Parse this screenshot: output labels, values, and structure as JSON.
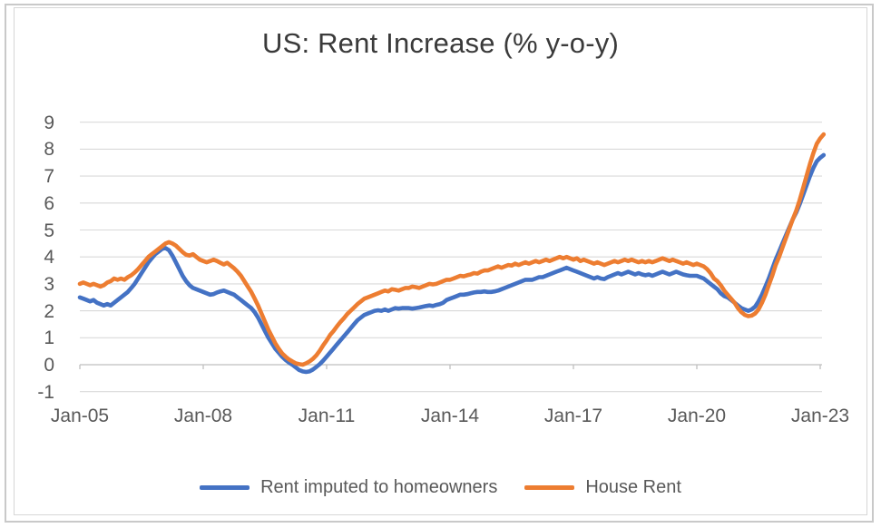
{
  "title": "US: Rent Increase (% y-o-y)",
  "colors": {
    "series_blue": "#4472C4",
    "series_orange": "#ED7D31",
    "gridline": "#d9d9d9",
    "axis_line": "#bfbfbf",
    "tick_text": "#595959",
    "title_text": "#3a3a3a",
    "frame_border": "#c9c9c9",
    "chart_box_border": "#d6d6d6"
  },
  "chart_data": {
    "type": "line",
    "title": "US: Rent Increase (% y-o-y)",
    "xlabel": "",
    "ylabel": "",
    "x_unit": "month",
    "x_start": "2005-01",
    "x_end": "2023-02",
    "x_tick_labels": [
      "Jan-05",
      "Jan-08",
      "Jan-11",
      "Jan-14",
      "Jan-17",
      "Jan-20",
      "Jan-23"
    ],
    "y_ticks": [
      9,
      8,
      7,
      6,
      5,
      4,
      3,
      2,
      1,
      0,
      -1
    ],
    "ylim": [
      -1,
      9
    ],
    "grid": true,
    "legend_position": "bottom",
    "series": [
      {
        "name": "Rent imputed to homeowners",
        "color": "#4472C4",
        "values": [
          2.5,
          2.45,
          2.4,
          2.35,
          2.4,
          2.3,
          2.25,
          2.2,
          2.25,
          2.2,
          2.3,
          2.4,
          2.5,
          2.6,
          2.7,
          2.85,
          3.0,
          3.2,
          3.4,
          3.6,
          3.8,
          3.95,
          4.1,
          4.2,
          4.3,
          4.33,
          4.25,
          4.05,
          3.8,
          3.55,
          3.3,
          3.1,
          2.95,
          2.85,
          2.8,
          2.75,
          2.7,
          2.65,
          2.6,
          2.62,
          2.68,
          2.72,
          2.75,
          2.7,
          2.65,
          2.6,
          2.5,
          2.4,
          2.3,
          2.2,
          2.1,
          1.95,
          1.75,
          1.5,
          1.25,
          1.0,
          0.8,
          0.6,
          0.45,
          0.3,
          0.18,
          0.08,
          0.0,
          -0.1,
          -0.2,
          -0.25,
          -0.27,
          -0.25,
          -0.18,
          -0.08,
          0.02,
          0.15,
          0.3,
          0.45,
          0.6,
          0.75,
          0.9,
          1.05,
          1.2,
          1.35,
          1.5,
          1.65,
          1.75,
          1.85,
          1.9,
          1.95,
          2.0,
          2.02,
          2.0,
          2.05,
          2.0,
          2.05,
          2.1,
          2.08,
          2.1,
          2.1,
          2.1,
          2.08,
          2.1,
          2.12,
          2.15,
          2.18,
          2.2,
          2.18,
          2.22,
          2.25,
          2.3,
          2.4,
          2.45,
          2.5,
          2.55,
          2.6,
          2.6,
          2.62,
          2.65,
          2.68,
          2.7,
          2.7,
          2.72,
          2.7,
          2.7,
          2.72,
          2.75,
          2.8,
          2.85,
          2.9,
          2.95,
          3.0,
          3.05,
          3.1,
          3.15,
          3.15,
          3.15,
          3.2,
          3.25,
          3.25,
          3.3,
          3.35,
          3.4,
          3.45,
          3.5,
          3.55,
          3.6,
          3.55,
          3.5,
          3.45,
          3.4,
          3.35,
          3.3,
          3.25,
          3.2,
          3.25,
          3.2,
          3.18,
          3.25,
          3.3,
          3.35,
          3.4,
          3.35,
          3.4,
          3.45,
          3.4,
          3.35,
          3.4,
          3.35,
          3.32,
          3.35,
          3.3,
          3.35,
          3.4,
          3.45,
          3.4,
          3.35,
          3.4,
          3.45,
          3.4,
          3.35,
          3.32,
          3.3,
          3.3,
          3.3,
          3.25,
          3.2,
          3.1,
          3.0,
          2.9,
          2.8,
          2.65,
          2.55,
          2.5,
          2.4,
          2.3,
          2.2,
          2.1,
          2.05,
          2.0,
          2.05,
          2.15,
          2.35,
          2.6,
          2.9,
          3.2,
          3.55,
          3.9,
          4.2,
          4.5,
          4.8,
          5.1,
          5.4,
          5.65,
          5.95,
          6.3,
          6.65,
          7.0,
          7.3,
          7.55,
          7.68,
          7.78
        ]
      },
      {
        "name": "House Rent",
        "color": "#ED7D31",
        "values": [
          3.0,
          3.05,
          3.0,
          2.95,
          3.0,
          2.95,
          2.9,
          2.95,
          3.05,
          3.1,
          3.2,
          3.15,
          3.2,
          3.15,
          3.25,
          3.32,
          3.42,
          3.55,
          3.7,
          3.85,
          4.0,
          4.1,
          4.2,
          4.3,
          4.4,
          4.5,
          4.55,
          4.5,
          4.42,
          4.3,
          4.18,
          4.08,
          4.05,
          4.1,
          4.0,
          3.9,
          3.85,
          3.8,
          3.85,
          3.9,
          3.85,
          3.78,
          3.72,
          3.78,
          3.68,
          3.58,
          3.45,
          3.3,
          3.1,
          2.9,
          2.7,
          2.45,
          2.2,
          1.9,
          1.6,
          1.3,
          1.05,
          0.8,
          0.6,
          0.42,
          0.3,
          0.2,
          0.12,
          0.05,
          0.02,
          0.0,
          0.05,
          0.12,
          0.22,
          0.35,
          0.52,
          0.72,
          0.9,
          1.1,
          1.25,
          1.42,
          1.58,
          1.72,
          1.88,
          2.0,
          2.12,
          2.25,
          2.35,
          2.45,
          2.5,
          2.55,
          2.6,
          2.65,
          2.7,
          2.75,
          2.72,
          2.8,
          2.78,
          2.75,
          2.8,
          2.85,
          2.85,
          2.9,
          2.88,
          2.85,
          2.9,
          2.95,
          3.0,
          2.98,
          3.0,
          3.05,
          3.1,
          3.15,
          3.15,
          3.2,
          3.25,
          3.3,
          3.28,
          3.32,
          3.35,
          3.4,
          3.38,
          3.45,
          3.5,
          3.5,
          3.55,
          3.6,
          3.65,
          3.6,
          3.65,
          3.7,
          3.68,
          3.75,
          3.7,
          3.75,
          3.8,
          3.75,
          3.8,
          3.85,
          3.8,
          3.85,
          3.9,
          3.85,
          3.9,
          3.95,
          4.0,
          3.95,
          4.0,
          3.95,
          3.9,
          3.95,
          3.85,
          3.9,
          3.85,
          3.8,
          3.75,
          3.8,
          3.75,
          3.7,
          3.75,
          3.8,
          3.85,
          3.8,
          3.85,
          3.9,
          3.85,
          3.9,
          3.85,
          3.8,
          3.85,
          3.8,
          3.85,
          3.8,
          3.85,
          3.9,
          3.95,
          3.9,
          3.85,
          3.9,
          3.85,
          3.8,
          3.75,
          3.8,
          3.75,
          3.7,
          3.75,
          3.7,
          3.65,
          3.55,
          3.4,
          3.2,
          3.1,
          2.95,
          2.75,
          2.6,
          2.45,
          2.3,
          2.1,
          1.95,
          1.85,
          1.8,
          1.82,
          1.9,
          2.05,
          2.3,
          2.6,
          2.95,
          3.3,
          3.7,
          4.0,
          4.35,
          4.7,
          5.05,
          5.4,
          5.72,
          6.1,
          6.55,
          7.0,
          7.45,
          7.85,
          8.2,
          8.4,
          8.55
        ]
      }
    ]
  },
  "legend": {
    "items": [
      {
        "label": "Rent imputed to homeowners",
        "color": "#4472C4"
      },
      {
        "label": "House Rent",
        "color": "#ED7D31"
      }
    ]
  }
}
